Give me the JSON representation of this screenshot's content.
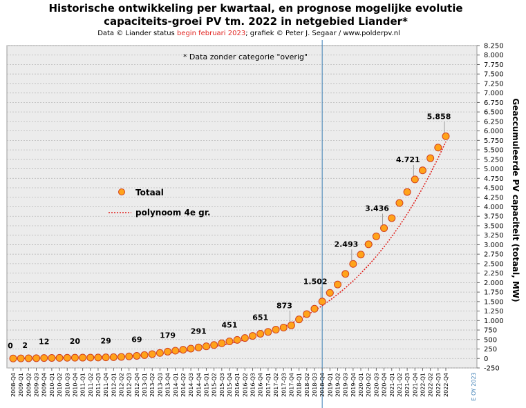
{
  "chart_data": {
    "type": "scatter",
    "title": [
      "Historische  ontwikkeling  per kwartaal, en prognose mogelijke  evolutie",
      "capaciteits-groei  PV tm. 2022 in  netgebied Liander*"
    ],
    "subtitle": [
      "Data © Liander status ",
      "begin februari 2023",
      "; grafiek © Peter J. Segaar / www.polderpv.nl"
    ],
    "annotation": "* Data zonder categorie \"overig\"",
    "footnote": "E OY 2023",
    "y_label": "Geaccumuleerde  PV  capaciteit  (totaal, MW)",
    "categories": [
      "2008-Q4",
      "2009-Q1",
      "2009-Q2",
      "2009-Q3",
      "2009-Q4",
      "2010-Q1",
      "2010-Q2",
      "2010-Q3",
      "2010-Q4",
      "2011-Q1",
      "2011-Q2",
      "2011-Q3",
      "2011-Q4",
      "2012-Q1",
      "2012-Q2",
      "2012-Q3",
      "2012-Q4",
      "2013-Q1",
      "2013-Q2",
      "2013-Q3",
      "2013-Q4",
      "2014-Q1",
      "2014-Q2",
      "2014-Q3",
      "2014-Q4",
      "2015-Q1",
      "2015-Q2",
      "2015-Q3",
      "2015-Q4",
      "2016-Q1",
      "2016-Q2",
      "2016-Q3",
      "2016-Q4",
      "2017-Q1",
      "2017-Q2",
      "2017-Q3",
      "2017-Q4",
      "2018-Q1",
      "2018-Q2",
      "2018-Q3",
      "2018-Q4",
      "2019-Q1",
      "2019-Q2",
      "2019-Q3",
      "2019-Q4",
      "2020-Q1",
      "2020-Q2",
      "2020-Q3",
      "2020-Q4",
      "2021-Q1",
      "2021-Q2",
      "2021-Q3",
      "2021-Q4",
      "2022-Q1",
      "2022-Q2",
      "2022-Q3",
      "2022-Q4"
    ],
    "series": [
      {
        "name": "Totaal",
        "color": "#ffa31a",
        "stroke": "#d2401e",
        "values": [
          0,
          2,
          5,
          8,
          12,
          14,
          16,
          18,
          20,
          22,
          24,
          26,
          29,
          35,
          42,
          55,
          69,
          90,
          115,
          145,
          179,
          205,
          230,
          260,
          291,
          320,
          355,
          400,
          451,
          490,
          540,
          595,
          651,
          700,
          760,
          815,
          873,
          1030,
          1170,
          1310,
          1502,
          1730,
          1950,
          2230,
          2493,
          2740,
          3010,
          3220,
          3436,
          3700,
          4100,
          4390,
          4721,
          4960,
          5280,
          5560,
          5858
        ],
        "value_labels": [
          "0",
          "2",
          null,
          null,
          "12",
          null,
          null,
          null,
          "20",
          null,
          null,
          null,
          "29",
          null,
          null,
          null,
          "69",
          null,
          null,
          null,
          "179",
          null,
          null,
          null,
          "291",
          null,
          null,
          null,
          "451",
          null,
          null,
          null,
          "651",
          null,
          null,
          null,
          "873",
          null,
          null,
          null,
          "1.502",
          null,
          null,
          null,
          "2.493",
          null,
          null,
          null,
          "3.436",
          null,
          null,
          null,
          "4.721",
          null,
          null,
          null,
          "5.858"
        ]
      },
      {
        "name": "polynoom 4e gr.",
        "color": "#e0201c",
        "line": "dotted",
        "values": [
          0,
          3,
          6,
          9,
          12,
          15,
          18,
          21,
          24,
          28,
          32,
          37,
          43,
          50,
          58,
          68,
          80,
          93,
          108,
          125,
          144,
          165,
          189,
          215,
          244,
          276,
          311,
          350,
          393,
          440,
          492,
          549,
          611,
          680,
          755,
          838,
          929,
          1030,
          1140,
          1260,
          1392,
          1536,
          1692,
          1862,
          2046,
          2245,
          2460,
          2692,
          2942,
          3211,
          3500,
          3810,
          4142,
          4497,
          4877,
          5282,
          5714
        ]
      }
    ],
    "ylim": [
      -250,
      8250
    ],
    "yticks": [
      -250,
      0,
      250,
      500,
      750,
      {
        "value": 1000,
        "label": "1.000"
      },
      {
        "value": 1250,
        "label": "1.250"
      },
      {
        "value": 1500,
        "label": "1.500"
      },
      {
        "value": 1750,
        "label": "1.750"
      },
      {
        "value": 2000,
        "label": "2.000"
      },
      {
        "value": 2250,
        "label": "2.250"
      },
      {
        "value": 2500,
        "label": "2.500"
      },
      {
        "value": 2750,
        "label": "2.750"
      },
      {
        "value": 3000,
        "label": "3.000"
      },
      {
        "value": 3250,
        "label": "3.250"
      },
      {
        "value": 3500,
        "label": "3.500"
      },
      {
        "value": 3750,
        "label": "3.750"
      },
      {
        "value": 4000,
        "label": "4.000"
      },
      {
        "value": 4250,
        "label": "4.250"
      },
      {
        "value": 4500,
        "label": "4.500"
      },
      {
        "value": 4750,
        "label": "4.750"
      },
      {
        "value": 5000,
        "label": "5.000"
      },
      {
        "value": 5250,
        "label": "5.250"
      },
      {
        "value": 5500,
        "label": "5.500"
      },
      {
        "value": 5750,
        "label": "5.750"
      },
      {
        "value": 6000,
        "label": "6.000"
      },
      {
        "value": 6250,
        "label": "6.250"
      },
      {
        "value": 6500,
        "label": "6.500"
      },
      {
        "value": 6750,
        "label": "6.750"
      },
      {
        "value": 7000,
        "label": "7.000"
      },
      {
        "value": 7250,
        "label": "7.250"
      },
      {
        "value": 7500,
        "label": "7.500"
      },
      {
        "value": 7750,
        "label": "7.750"
      },
      {
        "value": 8000,
        "label": "8.000"
      },
      {
        "value": 8250,
        "label": "8.250"
      }
    ],
    "grid": true,
    "legend": "left",
    "y_axis_side": "right"
  }
}
